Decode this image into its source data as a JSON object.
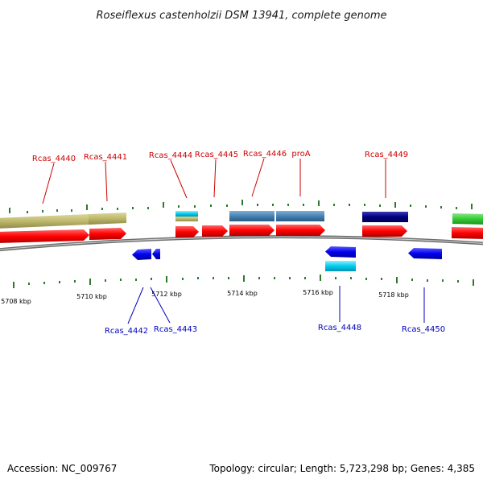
{
  "title": "Roseiflexus castenholzii DSM 13941, complete genome",
  "footer": {
    "accession": "Accession: NC_009767",
    "summary": "Topology: circular; Length: 5,723,298 bp; Genes: 4,385"
  },
  "colors": {
    "forward_label": "#cc0000",
    "reverse_label": "#0000bb",
    "cds": "#ff0000",
    "cds_reverse": "#0000ee",
    "cog_khaki": "#bdb76b",
    "cog_steel": "#4682b4",
    "cog_cyan": "#00ccee",
    "cog_navy": "#000080",
    "cog_green": "#33cc33",
    "tick": "#2d7a2d",
    "backbone": "#8c8c8c"
  },
  "axis": {
    "tick_labels": [
      "5708 kbp",
      "5710 kbp",
      "5712 kbp",
      "5714 kbp",
      "5716 kbp",
      "5718 kbp"
    ]
  },
  "genes": {
    "forward": [
      {
        "name": "Rcas_4440"
      },
      {
        "name": "Rcas_4441"
      },
      {
        "name": "Rcas_4444"
      },
      {
        "name": "Rcas_4445"
      },
      {
        "name": "Rcas_4446"
      },
      {
        "name": "proA"
      },
      {
        "name": "Rcas_4449"
      }
    ],
    "reverse": [
      {
        "name": "Rcas_4442"
      },
      {
        "name": "Rcas_4443"
      },
      {
        "name": "Rcas_4448"
      },
      {
        "name": "Rcas_4450"
      }
    ]
  }
}
